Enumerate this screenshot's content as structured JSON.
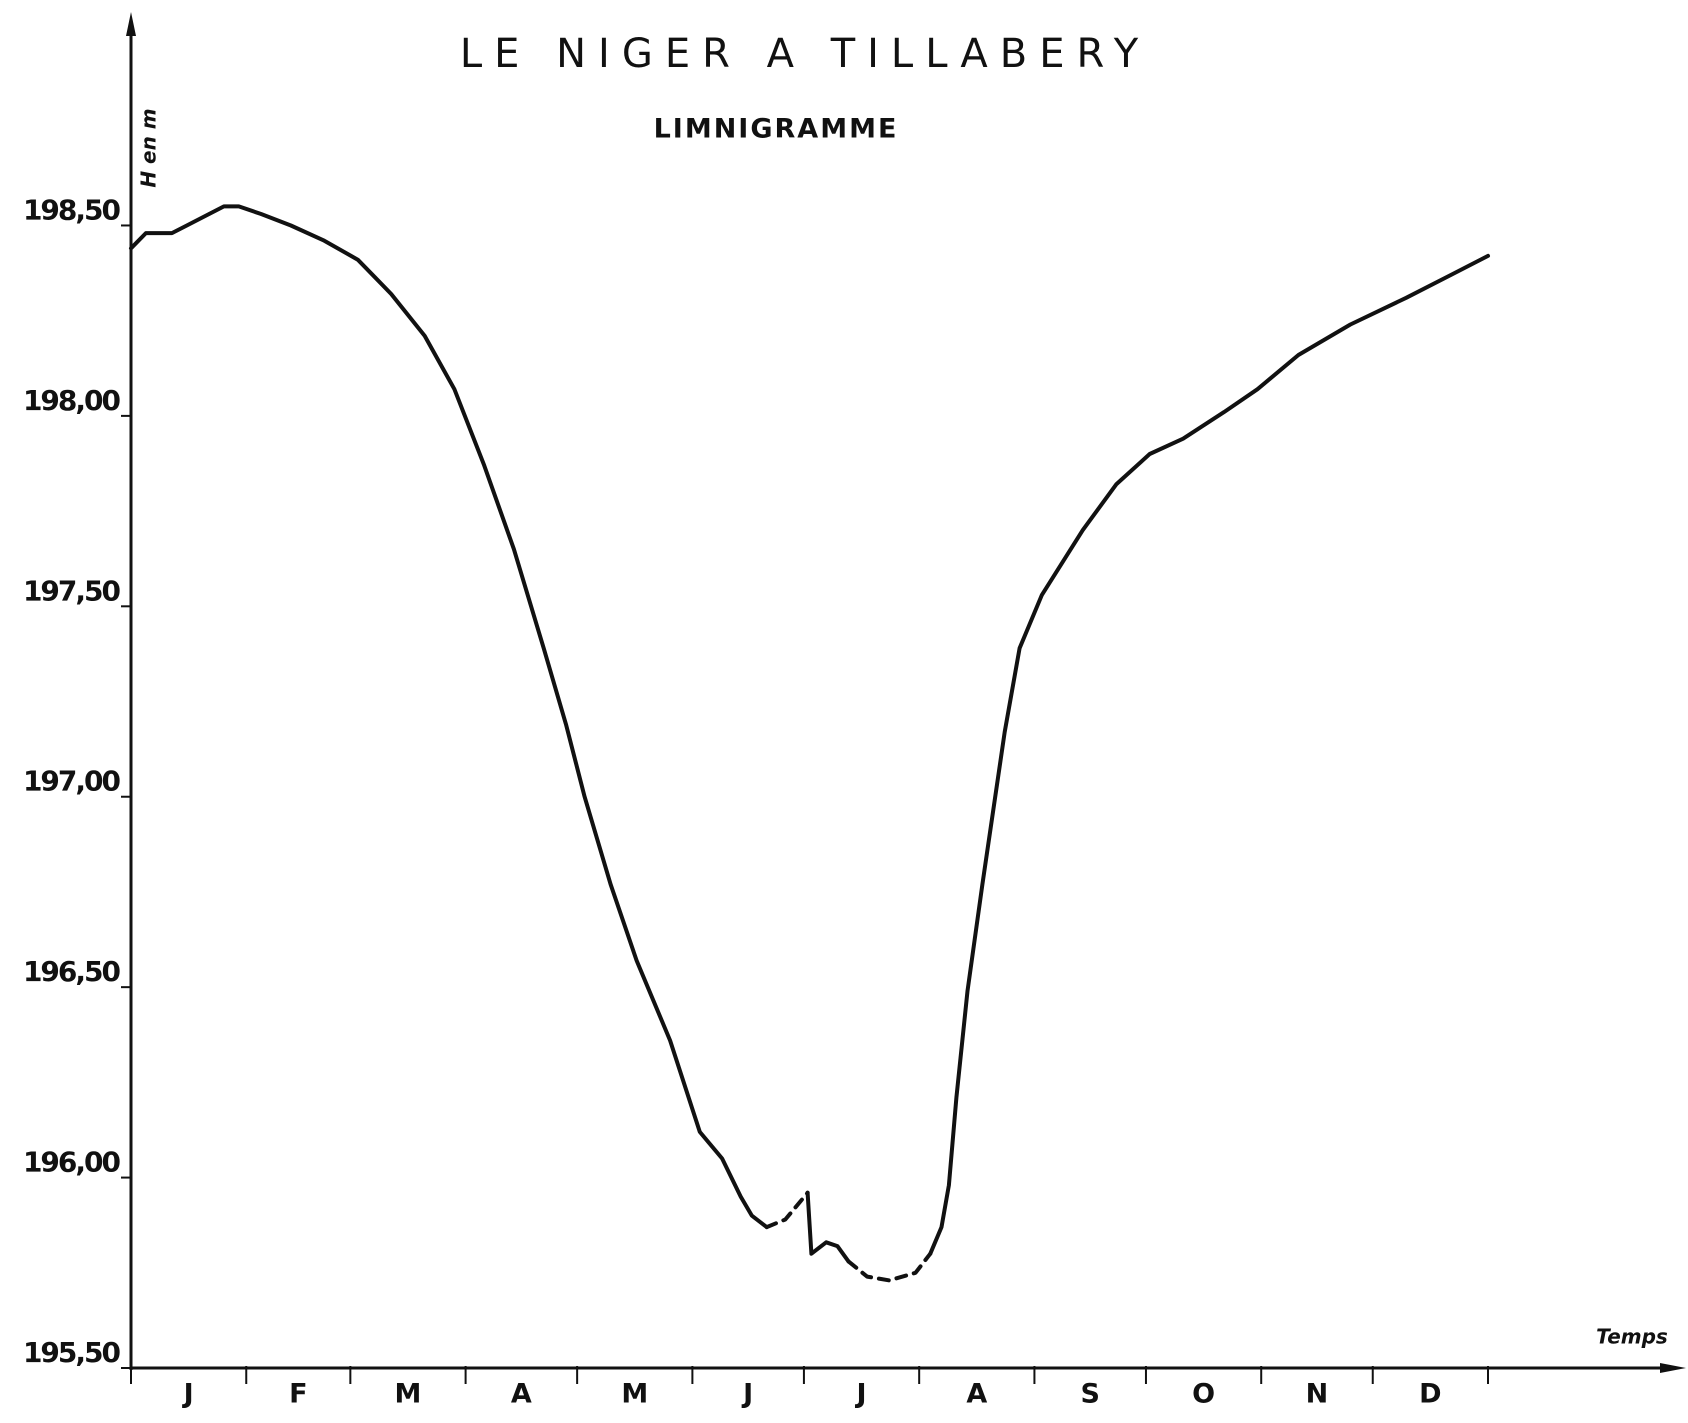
{
  "chart_data": {
    "type": "line",
    "title": "LE NIGER A TILLABERY",
    "subtitle": "LIMNIGRAMME",
    "y_label": "H en m",
    "x_label": "Temps",
    "categories": [
      "J",
      "F",
      "M",
      "A",
      "M",
      "J",
      "J",
      "A",
      "S",
      "O",
      "N",
      "D"
    ],
    "xlim": [
      0,
      365
    ],
    "xticks": [
      0,
      31,
      59,
      90,
      120,
      151,
      181,
      212,
      243,
      273,
      304,
      334,
      365
    ],
    "ylim": [
      195.5,
      199.05
    ],
    "yticks": [
      {
        "value": 195.5,
        "label": "195,50"
      },
      {
        "value": 196,
        "label": "196,00"
      },
      {
        "value": 196.5,
        "label": "196,50"
      },
      {
        "value": 197,
        "label": "197,00"
      },
      {
        "value": 197.5,
        "label": "197,50"
      },
      {
        "value": 198,
        "label": "198,00"
      },
      {
        "value": 198.5,
        "label": "198,50"
      }
    ],
    "grid": false,
    "x": [
      0,
      4,
      7,
      11,
      15,
      21,
      25,
      29,
      35,
      43,
      52,
      61,
      70,
      79,
      87,
      95,
      103,
      111,
      117,
      122,
      129,
      136,
      145,
      153,
      159,
      164,
      167,
      171,
      176,
      182,
      183,
      187,
      190,
      193,
      198,
      204,
      211,
      215,
      218,
      220,
      222,
      225,
      229,
      235,
      239,
      245,
      256,
      265,
      274,
      283,
      294,
      303,
      314,
      328,
      343,
      355,
      365
    ],
    "series": [
      {
        "color": "#111111",
        "dashed": false,
        "values": [
          198.44,
          198.48,
          198.48,
          198.48,
          198.5,
          198.53,
          198.55,
          198.55,
          198.53,
          198.5,
          198.46,
          198.41,
          198.32,
          198.21,
          198.07,
          197.87,
          197.65,
          197.39,
          197.19,
          197.0,
          196.77,
          196.57,
          196.36,
          196.12,
          196.05,
          195.95,
          195.9,
          195.87,
          null,
          195.96,
          195.8,
          195.83,
          195.82,
          195.78,
          null,
          null,
          null,
          195.8,
          195.87,
          195.98,
          196.21,
          196.49,
          196.77,
          197.17,
          197.39,
          197.53,
          197.7,
          197.82,
          197.9,
          197.94,
          198.01,
          198.07,
          198.16,
          198.24,
          198.31,
          198.37,
          198.42
        ]
      },
      {
        "color": "#111111",
        "dashed": true,
        "values": [
          null,
          null,
          null,
          null,
          null,
          null,
          null,
          null,
          null,
          null,
          null,
          null,
          null,
          null,
          null,
          null,
          null,
          null,
          null,
          null,
          null,
          null,
          null,
          null,
          null,
          null,
          null,
          195.87,
          195.89,
          195.96,
          null,
          null,
          null,
          195.78,
          195.74,
          195.73,
          195.75,
          195.8,
          null,
          null,
          null,
          null,
          null,
          null,
          null,
          null,
          null,
          null,
          null,
          null,
          null,
          null,
          null,
          null,
          null,
          null,
          null
        ]
      }
    ]
  }
}
